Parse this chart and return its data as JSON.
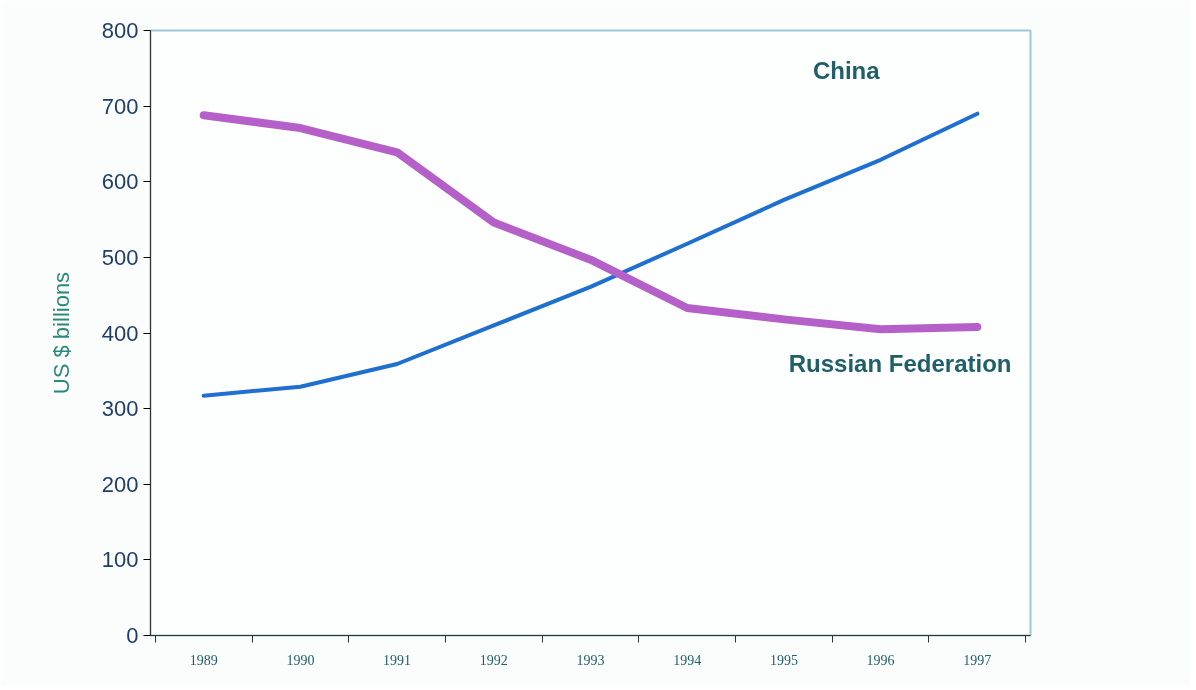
{
  "chart_data": {
    "type": "line",
    "ylabel": "US $ billions",
    "categories": [
      "1989",
      "1990",
      "1991",
      "1992",
      "1993",
      "1994",
      "1995",
      "1996",
      "1997"
    ],
    "series": [
      {
        "name": "China",
        "color": "#1f6fd0",
        "values": [
          317,
          329,
          359,
          410,
          461,
          518,
          576,
          629,
          690
        ]
      },
      {
        "name": "Russian Federation",
        "color": "#b560c8",
        "values": [
          688,
          671,
          639,
          546,
          497,
          433,
          418,
          405,
          408
        ]
      }
    ],
    "ylim": [
      0,
      800
    ],
    "yticks": [
      0,
      100,
      200,
      300,
      400,
      500,
      600,
      700,
      800
    ],
    "grid": false,
    "marker": "none",
    "line_style": "solid"
  }
}
